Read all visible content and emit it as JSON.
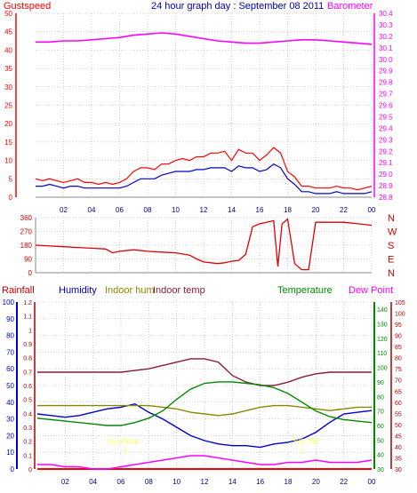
{
  "colors": {
    "gust": "#ff0000",
    "wind": "#0000cc",
    "baro": "#ff00ff",
    "dir": "#dd0000",
    "humidity": "#0000cc",
    "indoor_hum": "#888800",
    "indoor_temp": "#8b1a3a",
    "temperature": "#008800",
    "dew_point": "#ff00ff",
    "rainfall": "#ff0000",
    "title": "#0000aa",
    "grid": "#aaaaaa",
    "white_label": "#ffff66"
  },
  "header": {
    "gustspeed": "Gustspeed",
    "title": "24 hour graph day : September 08 2011",
    "barometer": "Barometer"
  },
  "legend2": {
    "rainfall": "Rainfall",
    "humidity": "Humidity",
    "indoor_hum": "Indoor hum",
    "indoor_temp": "Indoor temp",
    "temperature": "Temperature",
    "dew_point": "Dew Point"
  },
  "annotations": {
    "sunrise": "Sun Rise",
    "sunset": "Sun Set"
  },
  "chart_data": [
    {
      "type": "line",
      "title": "24 hour graph day : September 08 2011",
      "x_ticks": [
        "02",
        "04",
        "06",
        "08",
        "10",
        "12",
        "14",
        "16",
        "18",
        "20",
        "22",
        "00"
      ],
      "xlim": [
        0,
        24
      ],
      "y_left": {
        "label": "Gustspeed",
        "ticks": [
          0,
          5,
          10,
          15,
          20,
          25,
          30,
          35,
          40,
          45,
          50
        ],
        "lim": [
          0,
          50
        ]
      },
      "y_right": {
        "label": "Barometer",
        "ticks": [
          28.8,
          28.9,
          29.0,
          29.1,
          29.2,
          29.3,
          29.4,
          29.5,
          29.6,
          29.7,
          29.8,
          29.9,
          30.0,
          30.1,
          30.2,
          30.3,
          30.4
        ],
        "lim": [
          28.8,
          30.4
        ]
      },
      "series": [
        {
          "key": "gust",
          "axis": "left",
          "x": [
            0,
            0.5,
            1,
            1.5,
            2,
            2.5,
            3,
            3.5,
            4,
            4.5,
            5,
            5.5,
            6,
            6.5,
            7,
            7.5,
            8,
            8.5,
            9,
            9.5,
            10,
            10.5,
            11,
            11.5,
            12,
            12.5,
            13,
            13.5,
            14,
            14.5,
            15,
            15.5,
            16,
            16.5,
            17,
            17.5,
            18,
            18.5,
            19,
            19.5,
            20,
            20.5,
            21,
            21.5,
            22,
            22.5,
            23,
            23.5,
            24
          ],
          "y": [
            5,
            4.5,
            5,
            4.5,
            4,
            4.5,
            5,
            4,
            4,
            3.5,
            4,
            3.5,
            4,
            5,
            7,
            8,
            8,
            7.5,
            9,
            9,
            10,
            10.5,
            10,
            11,
            11,
            12,
            12,
            12.5,
            10,
            13,
            12,
            12,
            10,
            11.5,
            13.5,
            12,
            7,
            5.5,
            3,
            3,
            2.5,
            2.5,
            2.5,
            3,
            2.5,
            2.5,
            2,
            2.5,
            3
          ]
        },
        {
          "key": "wind",
          "axis": "left",
          "x": [
            0,
            0.5,
            1,
            1.5,
            2,
            2.5,
            3,
            3.5,
            4,
            4.5,
            5,
            5.5,
            6,
            6.5,
            7,
            7.5,
            8,
            8.5,
            9,
            9.5,
            10,
            10.5,
            11,
            11.5,
            12,
            12.5,
            13,
            13.5,
            14,
            14.5,
            15,
            15.5,
            16,
            16.5,
            17,
            17.5,
            18,
            18.5,
            19,
            19.5,
            20,
            20.5,
            21,
            21.5,
            22,
            22.5,
            23,
            23.5,
            24
          ],
          "y": [
            3,
            3,
            3.5,
            3,
            2.5,
            3,
            3,
            2.5,
            2.5,
            2.5,
            2.5,
            2.5,
            2.5,
            3,
            4,
            5,
            5,
            5,
            6,
            6.5,
            7,
            7,
            7,
            7.5,
            7.5,
            8,
            8,
            8,
            7,
            8.5,
            8,
            8,
            7,
            7.5,
            9,
            8,
            5,
            3.5,
            1.5,
            1.5,
            1,
            1,
            1,
            1.5,
            1,
            1,
            1,
            1,
            1.5
          ]
        },
        {
          "key": "baro",
          "axis": "right",
          "x": [
            0,
            1,
            2,
            3,
            4,
            5,
            6,
            7,
            8,
            9,
            10,
            11,
            12,
            13,
            14,
            15,
            16,
            17,
            18,
            19,
            20,
            21,
            22,
            23,
            24
          ],
          "y": [
            30.15,
            30.15,
            30.16,
            30.16,
            30.17,
            30.18,
            30.19,
            30.21,
            30.22,
            30.23,
            30.22,
            30.2,
            30.18,
            30.16,
            30.15,
            30.14,
            30.14,
            30.15,
            30.16,
            30.17,
            30.17,
            30.16,
            30.15,
            30.14,
            30.13
          ]
        }
      ]
    },
    {
      "type": "line",
      "x_ticks": [
        "02",
        "04",
        "06",
        "08",
        "10",
        "12",
        "14",
        "16",
        "18",
        "20",
        "22",
        "00"
      ],
      "xlim": [
        0,
        24
      ],
      "y_left": {
        "ticks": [
          0,
          90,
          180,
          270,
          360
        ],
        "lim": [
          0,
          360
        ]
      },
      "y_right": {
        "ticks": [
          "N",
          "W",
          "S",
          "E",
          "N"
        ]
      },
      "series": [
        {
          "key": "dir",
          "x": [
            0,
            1,
            2,
            3,
            4,
            5,
            5.5,
            6,
            7,
            8,
            9,
            10,
            11,
            11.5,
            12,
            13,
            13.5,
            14,
            14.5,
            15,
            15.5,
            16,
            16.5,
            17,
            17.3,
            17.6,
            18,
            18.5,
            19,
            19.5,
            20,
            21,
            22,
            23,
            24
          ],
          "y": [
            180,
            175,
            170,
            165,
            160,
            155,
            130,
            140,
            150,
            140,
            135,
            130,
            115,
            90,
            70,
            60,
            65,
            75,
            80,
            120,
            300,
            320,
            330,
            340,
            40,
            320,
            350,
            60,
            20,
            20,
            330,
            330,
            330,
            320,
            310
          ]
        }
      ]
    },
    {
      "type": "line",
      "x_ticks": [
        "02",
        "04",
        "06",
        "08",
        "10",
        "12",
        "14",
        "16",
        "18",
        "20",
        "22",
        "00"
      ],
      "xlim": [
        0,
        24
      ],
      "y_left_rain": {
        "label": "Rainfall",
        "ticks": [
          0,
          0.1,
          0.2,
          0.3,
          0.4,
          0.5,
          0.6,
          0.7,
          0.8,
          0.9,
          1,
          1.1,
          1.2
        ],
        "lim": [
          0,
          1.2
        ]
      },
      "y_left_hum": {
        "label": "Humidity",
        "ticks": [
          0,
          10,
          20,
          30,
          40,
          50,
          60,
          70,
          80,
          90,
          100
        ],
        "lim": [
          0,
          100
        ]
      },
      "y_right_temp": {
        "label": "Temperature",
        "ticks": [
          30,
          40,
          50,
          60,
          70,
          80,
          90,
          100,
          110,
          120,
          130,
          140
        ],
        "lim": [
          30,
          145
        ]
      },
      "y_right_dew": {
        "label": "Dew Point",
        "ticks": [
          30,
          35,
          40,
          45,
          50,
          55,
          60,
          65,
          70,
          75,
          80,
          85,
          90,
          95,
          100,
          105
        ],
        "lim": [
          30,
          105
        ]
      },
      "series": [
        {
          "key": "rainfall",
          "axis": "rain",
          "x": [
            0,
            24
          ],
          "y": [
            0,
            0
          ]
        },
        {
          "key": "humidity",
          "axis": "hum",
          "x": [
            0,
            1,
            2,
            3,
            4,
            5,
            6,
            7,
            8,
            9,
            10,
            11,
            12,
            13,
            14,
            15,
            16,
            17,
            18,
            19,
            20,
            21,
            22,
            23,
            24
          ],
          "y": [
            33,
            32,
            31,
            32,
            34,
            36,
            37,
            39,
            34,
            30,
            25,
            20,
            17,
            15,
            14,
            14,
            13,
            15,
            16,
            18,
            22,
            28,
            33,
            34,
            35
          ]
        },
        {
          "key": "indoor_hum",
          "axis": "hum",
          "x": [
            0,
            1,
            2,
            3,
            4,
            5,
            6,
            7,
            8,
            9,
            10,
            11,
            12,
            13,
            14,
            15,
            16,
            17,
            18,
            19,
            20,
            21,
            22,
            23,
            24
          ],
          "y": [
            38,
            38,
            38,
            38,
            38,
            38,
            38,
            38,
            38,
            37,
            36,
            34,
            33,
            32,
            33,
            35,
            37,
            38,
            38,
            37,
            36,
            35,
            36,
            37,
            37
          ]
        },
        {
          "key": "indoor_temp",
          "axis": "hum",
          "x": [
            0,
            1,
            2,
            3,
            4,
            5,
            6,
            7,
            8,
            9,
            10,
            11,
            12,
            13,
            14,
            15,
            16,
            17,
            18,
            19,
            20,
            21,
            22,
            23,
            24
          ],
          "y": [
            58,
            58,
            58,
            58,
            58,
            58,
            58,
            59,
            60,
            62,
            64,
            66,
            66,
            64,
            56,
            52,
            50,
            50,
            52,
            55,
            57,
            58,
            58,
            58,
            58
          ]
        },
        {
          "key": "temperature",
          "axis": "temp",
          "x": [
            0,
            1,
            2,
            3,
            4,
            5,
            6,
            7,
            8,
            9,
            10,
            11,
            12,
            13,
            14,
            15,
            16,
            17,
            18,
            19,
            20,
            21,
            22,
            23,
            24
          ],
          "y": [
            65,
            64,
            63,
            62,
            61,
            60,
            60,
            62,
            65,
            70,
            78,
            85,
            89,
            90,
            90,
            89,
            88,
            86,
            82,
            76,
            70,
            66,
            64,
            63,
            62
          ]
        },
        {
          "key": "dew_point",
          "axis": "dew",
          "x": [
            0,
            1,
            2,
            3,
            4,
            5,
            6,
            7,
            8,
            9,
            10,
            11,
            12,
            13,
            14,
            15,
            16,
            17,
            18,
            19,
            20,
            21,
            22,
            23,
            24
          ],
          "y": [
            32,
            32,
            31,
            31,
            30,
            30,
            31,
            32,
            33,
            34,
            35,
            36,
            36,
            35,
            34,
            33,
            32,
            32,
            33,
            33,
            34,
            33,
            33,
            33,
            34
          ]
        }
      ]
    }
  ]
}
